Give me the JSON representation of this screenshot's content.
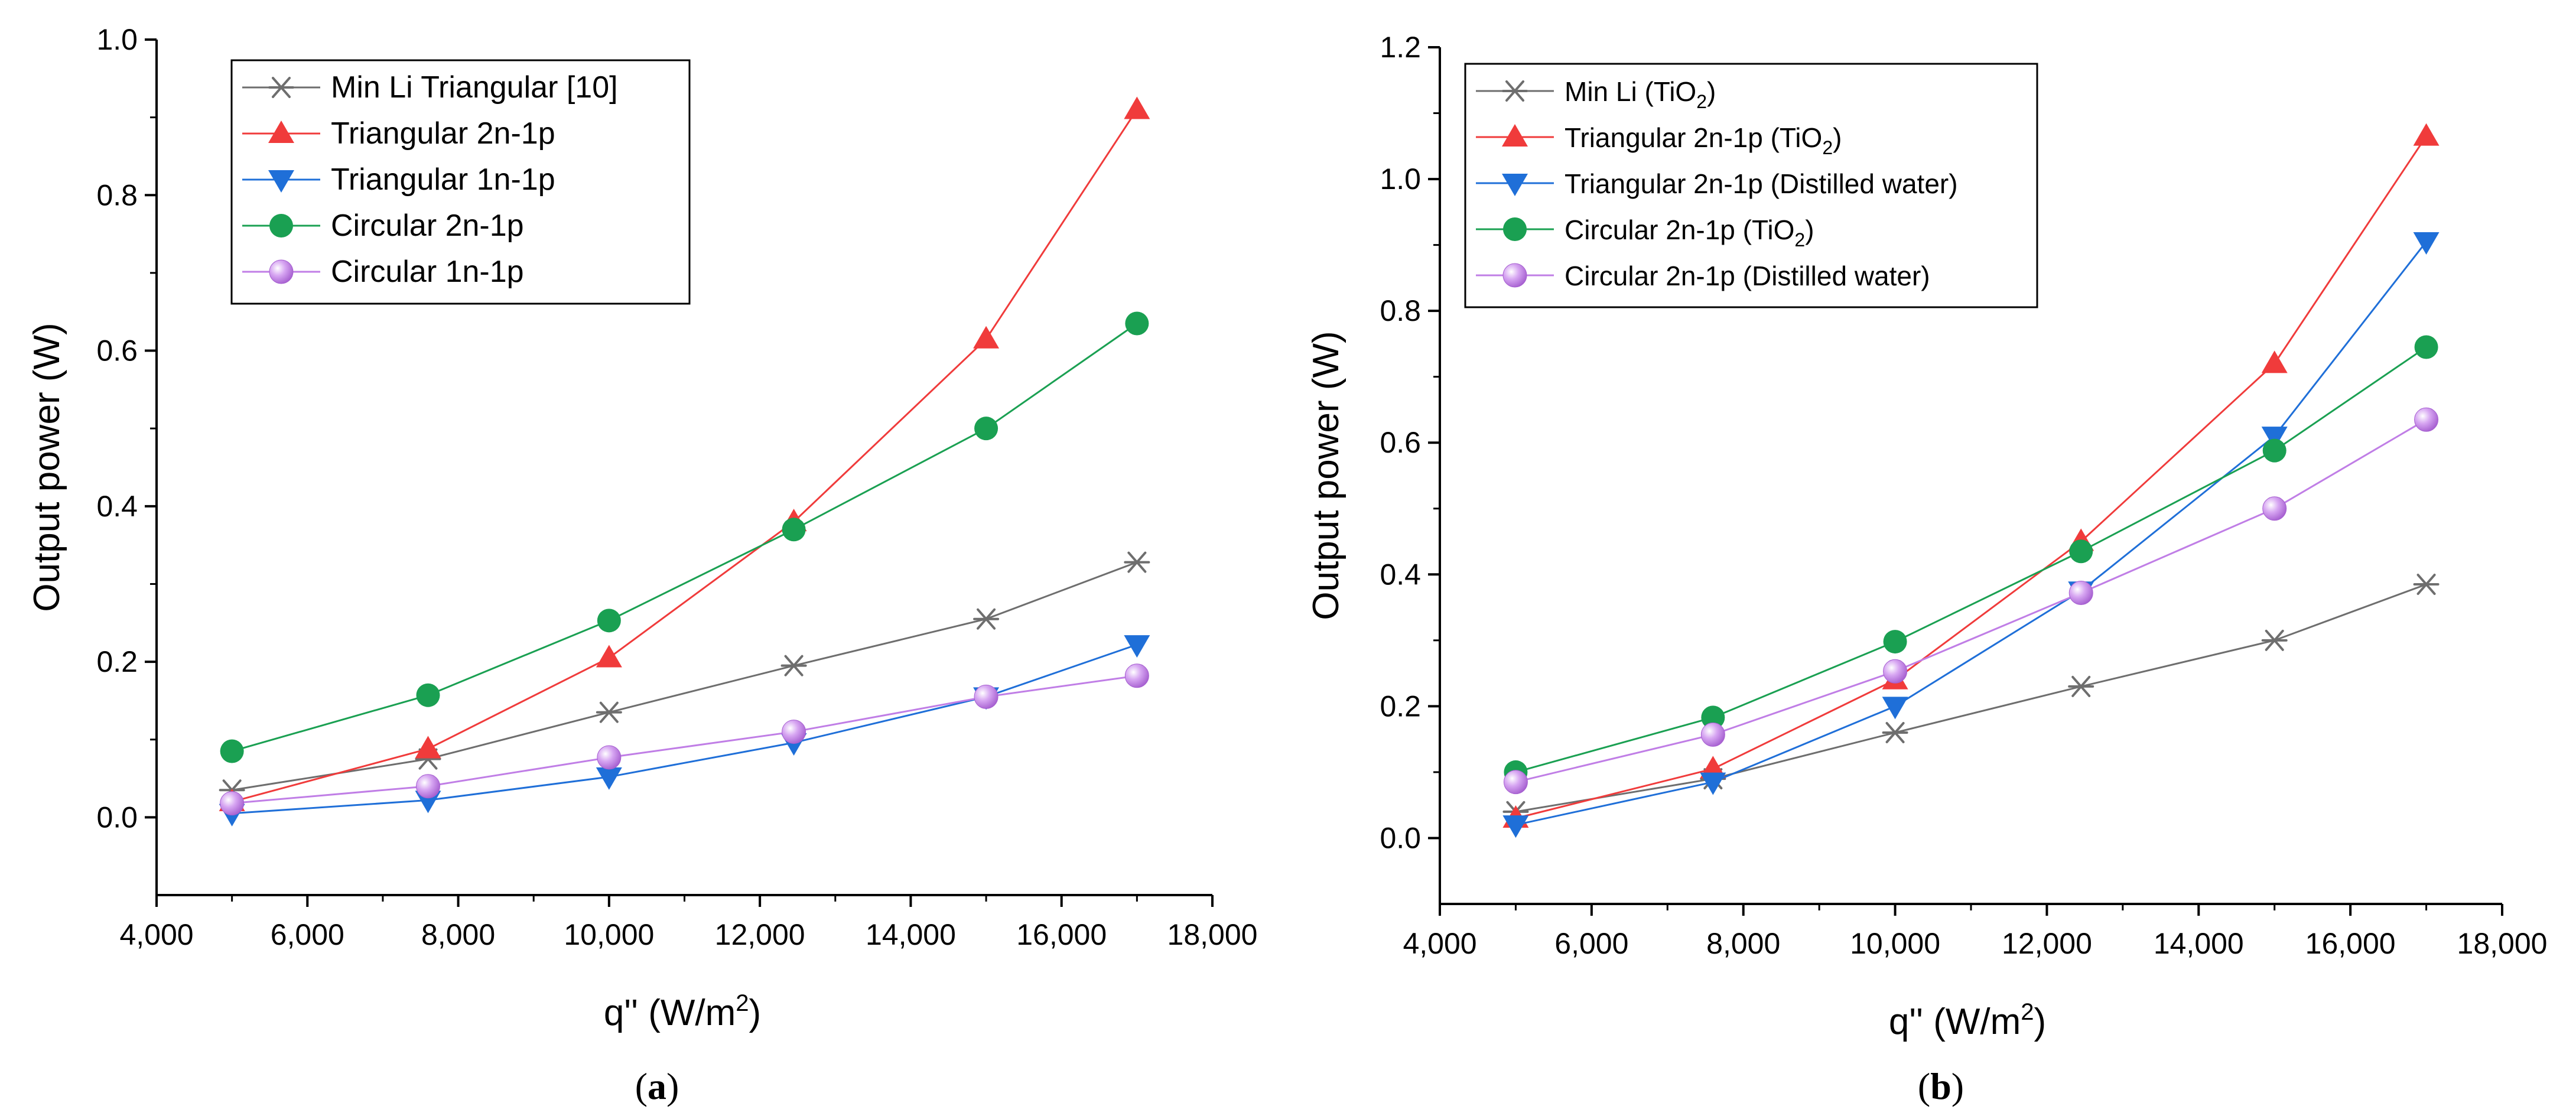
{
  "chart_data": [
    {
      "type": "line",
      "panel_label": "(a)",
      "xlabel": "q'' (W/m",
      "xlabel_sup": "2",
      "xlabel_suffix": ")",
      "ylabel": "Output power (W)",
      "xlim": [
        4000,
        18000
      ],
      "ylim": [
        -0.1,
        1.0
      ],
      "x_ticks": [
        4000,
        6000,
        8000,
        10000,
        12000,
        14000,
        16000,
        18000
      ],
      "x_tick_labels": [
        "4,000",
        "6,000",
        "8,000",
        "10,000",
        "12,000",
        "14,000",
        "16,000",
        "18,000"
      ],
      "y_ticks": [
        0.0,
        0.2,
        0.4,
        0.6,
        0.8,
        1.0
      ],
      "y_tick_labels": [
        "0.0",
        "0.2",
        "0.4",
        "0.6",
        "0.8",
        "1.0"
      ],
      "legend_position": "top-left",
      "x": [
        5000,
        7600,
        10000,
        12450,
        15000,
        17000
      ],
      "series": [
        {
          "name": "Min Li Triangular [10]",
          "name_sub": "",
          "name_suffix": "",
          "color": "#6e6e6e",
          "marker": "asterisk",
          "values": [
            0.035,
            0.075,
            0.135,
            0.195,
            0.255,
            0.328
          ]
        },
        {
          "name": "Triangular 2n-1p",
          "name_sub": "",
          "name_suffix": "",
          "color": "#f03b3b",
          "marker": "triangle-up",
          "values": [
            0.02,
            0.088,
            0.205,
            0.38,
            0.615,
            0.91
          ]
        },
        {
          "name": "Triangular 1n-1p",
          "name_sub": "",
          "name_suffix": "",
          "color": "#1f6fd8",
          "marker": "triangle-down",
          "values": [
            0.005,
            0.022,
            0.052,
            0.096,
            0.155,
            0.222
          ]
        },
        {
          "name": "Circular 2n-1p",
          "name_sub": "",
          "name_suffix": "",
          "color": "#1aa052",
          "marker": "circle",
          "values": [
            0.085,
            0.157,
            0.253,
            0.37,
            0.5,
            0.635
          ]
        },
        {
          "name": "Circular 1n-1p",
          "name_sub": "",
          "name_suffix": "",
          "color": "#c07ee6",
          "marker": "sphere",
          "values": [
            0.018,
            0.04,
            0.077,
            0.11,
            0.155,
            0.182
          ]
        }
      ]
    },
    {
      "type": "line",
      "panel_label": "(b)",
      "xlabel": "q'' (W/m",
      "xlabel_sup": "2",
      "xlabel_suffix": ")",
      "ylabel": "Output power (W)",
      "xlim": [
        4000,
        18000
      ],
      "ylim": [
        -0.1,
        1.2
      ],
      "x_ticks": [
        4000,
        6000,
        8000,
        10000,
        12000,
        14000,
        16000,
        18000
      ],
      "x_tick_labels": [
        "4,000",
        "6,000",
        "8,000",
        "10,000",
        "12,000",
        "14,000",
        "16,000",
        "18,000"
      ],
      "y_ticks": [
        0.0,
        0.2,
        0.4,
        0.6,
        0.8,
        1.0,
        1.2
      ],
      "y_tick_labels": [
        "0.0",
        "0.2",
        "0.4",
        "0.6",
        "0.8",
        "1.0",
        "1.2"
      ],
      "legend_position": "top-left",
      "x": [
        5000,
        7600,
        10000,
        12450,
        15000,
        17000
      ],
      "series": [
        {
          "name": "Min Li (TiO",
          "name_sub": "2",
          "name_suffix": ")",
          "color": "#6e6e6e",
          "marker": "asterisk",
          "values": [
            0.04,
            0.09,
            0.16,
            0.23,
            0.3,
            0.385
          ]
        },
        {
          "name": "Triangular 2n-1p (TiO",
          "name_sub": "2",
          "name_suffix": ")",
          "color": "#f03b3b",
          "marker": "triangle-up",
          "values": [
            0.03,
            0.105,
            0.24,
            0.45,
            0.72,
            1.065
          ]
        },
        {
          "name": "Triangular 2n-1p (Distilled water)",
          "name_sub": "",
          "name_suffix": "",
          "color": "#1f6fd8",
          "marker": "triangle-down",
          "values": [
            0.02,
            0.085,
            0.2,
            0.375,
            0.61,
            0.905
          ]
        },
        {
          "name": "Circular 2n-1p (TiO",
          "name_sub": "2",
          "name_suffix": ")",
          "color": "#1aa052",
          "marker": "circle",
          "values": [
            0.1,
            0.183,
            0.298,
            0.435,
            0.588,
            0.745
          ]
        },
        {
          "name": "Circular 2n-1p (Distilled water)",
          "name_sub": "",
          "name_suffix": "",
          "color": "#c07ee6",
          "marker": "sphere",
          "values": [
            0.085,
            0.157,
            0.253,
            0.372,
            0.5,
            0.635
          ]
        }
      ]
    }
  ]
}
